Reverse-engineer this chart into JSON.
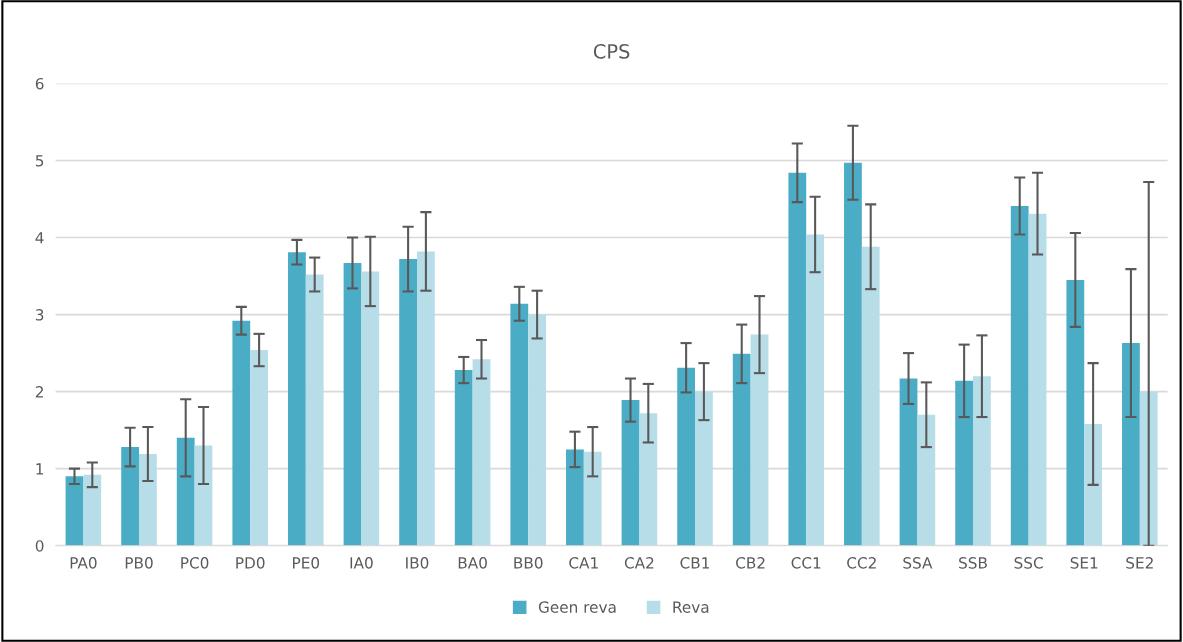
{
  "chart_data": {
    "type": "bar",
    "title": "CPS",
    "categories": [
      "PA0",
      "PB0",
      "PC0",
      "PD0",
      "PE0",
      "IA0",
      "IB0",
      "BA0",
      "BB0",
      "CA1",
      "CA2",
      "CB1",
      "CB2",
      "CC1",
      "CC2",
      "SSA",
      "SSB",
      "SSC",
      "SE1",
      "SE2"
    ],
    "series": [
      {
        "name": "Geen reva",
        "color": "#4bacc6",
        "values": [
          0.9,
          1.28,
          1.4,
          2.92,
          3.81,
          3.67,
          3.72,
          2.28,
          3.14,
          1.25,
          1.89,
          2.31,
          2.49,
          4.84,
          4.97,
          2.17,
          2.14,
          4.41,
          3.45,
          2.63
        ],
        "errors": [
          0.1,
          0.25,
          0.5,
          0.18,
          0.16,
          0.33,
          0.42,
          0.17,
          0.22,
          0.23,
          0.28,
          0.32,
          0.38,
          0.38,
          0.48,
          0.33,
          0.47,
          0.37,
          0.61,
          0.96
        ]
      },
      {
        "name": "Reva",
        "color": "#b7dde8",
        "values": [
          0.92,
          1.19,
          1.3,
          2.54,
          3.52,
          3.56,
          3.82,
          2.42,
          3.0,
          1.22,
          1.72,
          2.0,
          2.74,
          4.04,
          3.88,
          1.7,
          2.2,
          4.31,
          1.58,
          2.0
        ],
        "errors": [
          0.16,
          0.35,
          0.5,
          0.21,
          0.22,
          0.45,
          0.51,
          0.25,
          0.31,
          0.32,
          0.38,
          0.37,
          0.5,
          0.49,
          0.55,
          0.42,
          0.53,
          0.53,
          0.79,
          [
            0,
            4.72
          ]
        ]
      }
    ],
    "ylim": [
      0,
      6
    ],
    "yticks": [
      0,
      1,
      2,
      3,
      4,
      5,
      6
    ],
    "grid": "y",
    "legend": "bottom"
  }
}
